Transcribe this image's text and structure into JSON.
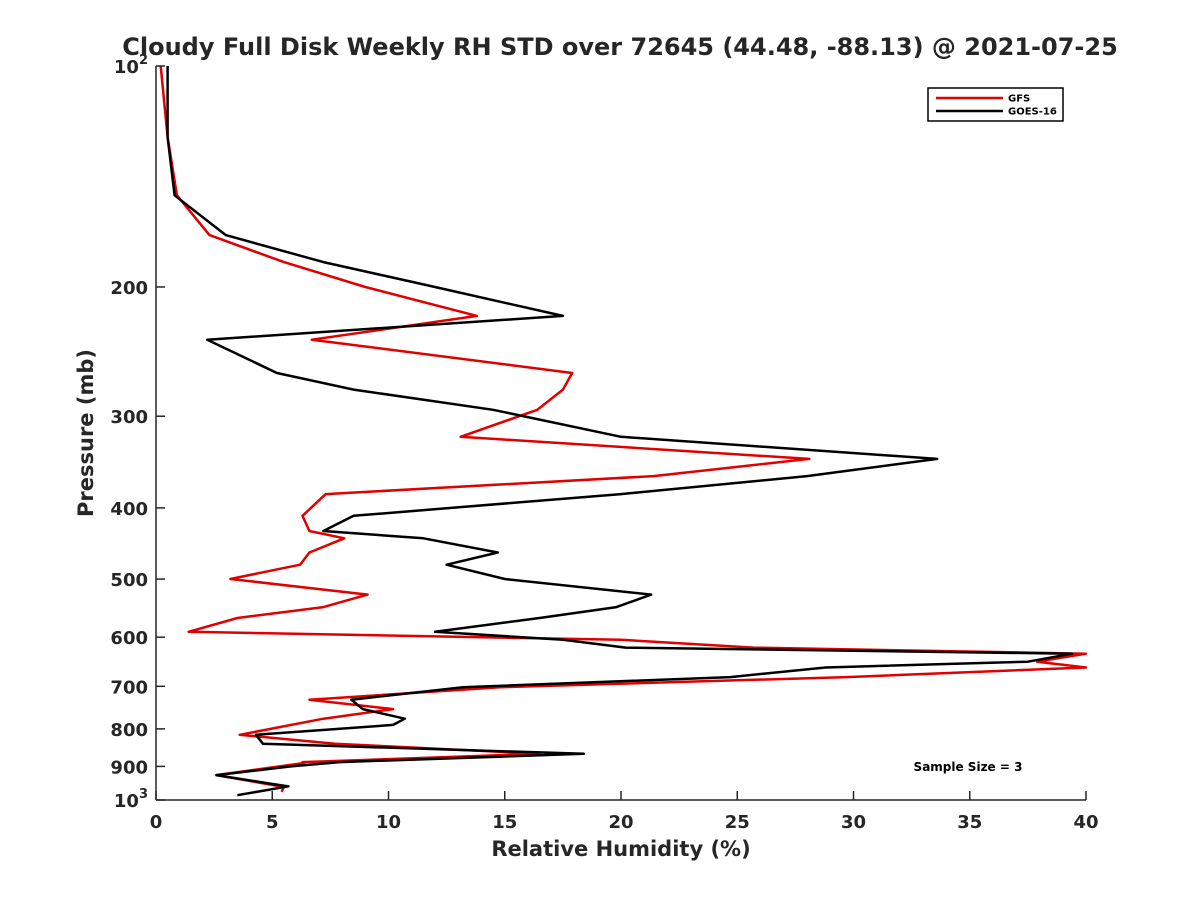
{
  "chart_data": {
    "type": "line",
    "title": "Cloudy Full Disk Weekly RH STD over 72645 (44.48, -88.13) @ 2021-07-25",
    "xlabel": "Relative Humidity (%)",
    "ylabel": "Pressure (mb)",
    "xlim": [
      0,
      40
    ],
    "ylim": [
      100,
      1000
    ],
    "y_scale": "log",
    "y_reversed": true,
    "x_ticks": [
      0,
      5,
      10,
      15,
      20,
      25,
      30,
      35,
      40
    ],
    "y_ticks": [
      {
        "value": 100,
        "label": "10",
        "sup": "2"
      },
      {
        "value": 200,
        "label": "200"
      },
      {
        "value": 300,
        "label": "300"
      },
      {
        "value": 400,
        "label": "400"
      },
      {
        "value": 500,
        "label": "500"
      },
      {
        "value": 600,
        "label": "600"
      },
      {
        "value": 700,
        "label": "700"
      },
      {
        "value": 800,
        "label": "800"
      },
      {
        "value": 900,
        "label": "900"
      },
      {
        "value": 1000,
        "label": "10",
        "sup": "3"
      }
    ],
    "grid": false,
    "legend_position": "top-right",
    "annotation": "Sample Size = 3",
    "series": [
      {
        "name": "GFS",
        "color": "#e00000",
        "points": [
          [
            0.2,
            100
          ],
          [
            0.5,
            125
          ],
          [
            0.9,
            150
          ],
          [
            2.3,
            170
          ],
          [
            5.5,
            185
          ],
          [
            9.0,
            200
          ],
          [
            13.8,
            219
          ],
          [
            6.7,
            236
          ],
          [
            17.9,
            262
          ],
          [
            17.5,
            276
          ],
          [
            16.4,
            294
          ],
          [
            13.1,
            320
          ],
          [
            28.1,
            343
          ],
          [
            21.4,
            362
          ],
          [
            7.3,
            383
          ],
          [
            6.3,
            410
          ],
          [
            6.6,
            430
          ],
          [
            8.1,
            440
          ],
          [
            6.6,
            460
          ],
          [
            6.2,
            478
          ],
          [
            3.2,
            500
          ],
          [
            9.1,
            525
          ],
          [
            7.2,
            546
          ],
          [
            3.5,
            565
          ],
          [
            1.4,
            590
          ],
          [
            20.0,
            605
          ],
          [
            25.7,
            620
          ],
          [
            40.0,
            632
          ],
          [
            37.9,
            648
          ],
          [
            40.0,
            660
          ],
          [
            29.7,
            680
          ],
          [
            14.8,
            702
          ],
          [
            6.6,
            730
          ],
          [
            10.2,
            752
          ],
          [
            7.2,
            775
          ],
          [
            3.6,
            815
          ],
          [
            7.7,
            838
          ],
          [
            16.5,
            865
          ],
          [
            6.3,
            888
          ],
          [
            6.4,
            890
          ],
          [
            2.6,
            925
          ],
          [
            5.5,
            960
          ],
          [
            5.4,
            975
          ]
        ]
      },
      {
        "name": "GOES-16",
        "color": "#000000",
        "points": [
          [
            0.5,
            100
          ],
          [
            0.5,
            125
          ],
          [
            0.8,
            150
          ],
          [
            3.0,
            170
          ],
          [
            7.2,
            185
          ],
          [
            12.0,
            200
          ],
          [
            17.5,
            219
          ],
          [
            2.2,
            236
          ],
          [
            5.2,
            262
          ],
          [
            8.5,
            276
          ],
          [
            14.5,
            294
          ],
          [
            20.0,
            320
          ],
          [
            33.6,
            343
          ],
          [
            28.0,
            362
          ],
          [
            20.0,
            383
          ],
          [
            8.5,
            410
          ],
          [
            7.2,
            430
          ],
          [
            11.5,
            440
          ],
          [
            14.7,
            460
          ],
          [
            12.5,
            478
          ],
          [
            15.0,
            500
          ],
          [
            21.3,
            525
          ],
          [
            19.8,
            546
          ],
          [
            16.5,
            565
          ],
          [
            12.0,
            590
          ],
          [
            17.5,
            605
          ],
          [
            20.2,
            620
          ],
          [
            39.4,
            632
          ],
          [
            37.5,
            648
          ],
          [
            28.8,
            660
          ],
          [
            24.7,
            680
          ],
          [
            13.2,
            702
          ],
          [
            8.4,
            730
          ],
          [
            8.9,
            752
          ],
          [
            10.7,
            775
          ],
          [
            10.2,
            790
          ],
          [
            4.3,
            815
          ],
          [
            4.6,
            838
          ],
          [
            18.4,
            865
          ],
          [
            7.9,
            888
          ],
          [
            5.8,
            900
          ],
          [
            2.6,
            925
          ],
          [
            4.9,
            950
          ],
          [
            5.7,
            958
          ],
          [
            3.5,
            985
          ]
        ]
      }
    ]
  }
}
